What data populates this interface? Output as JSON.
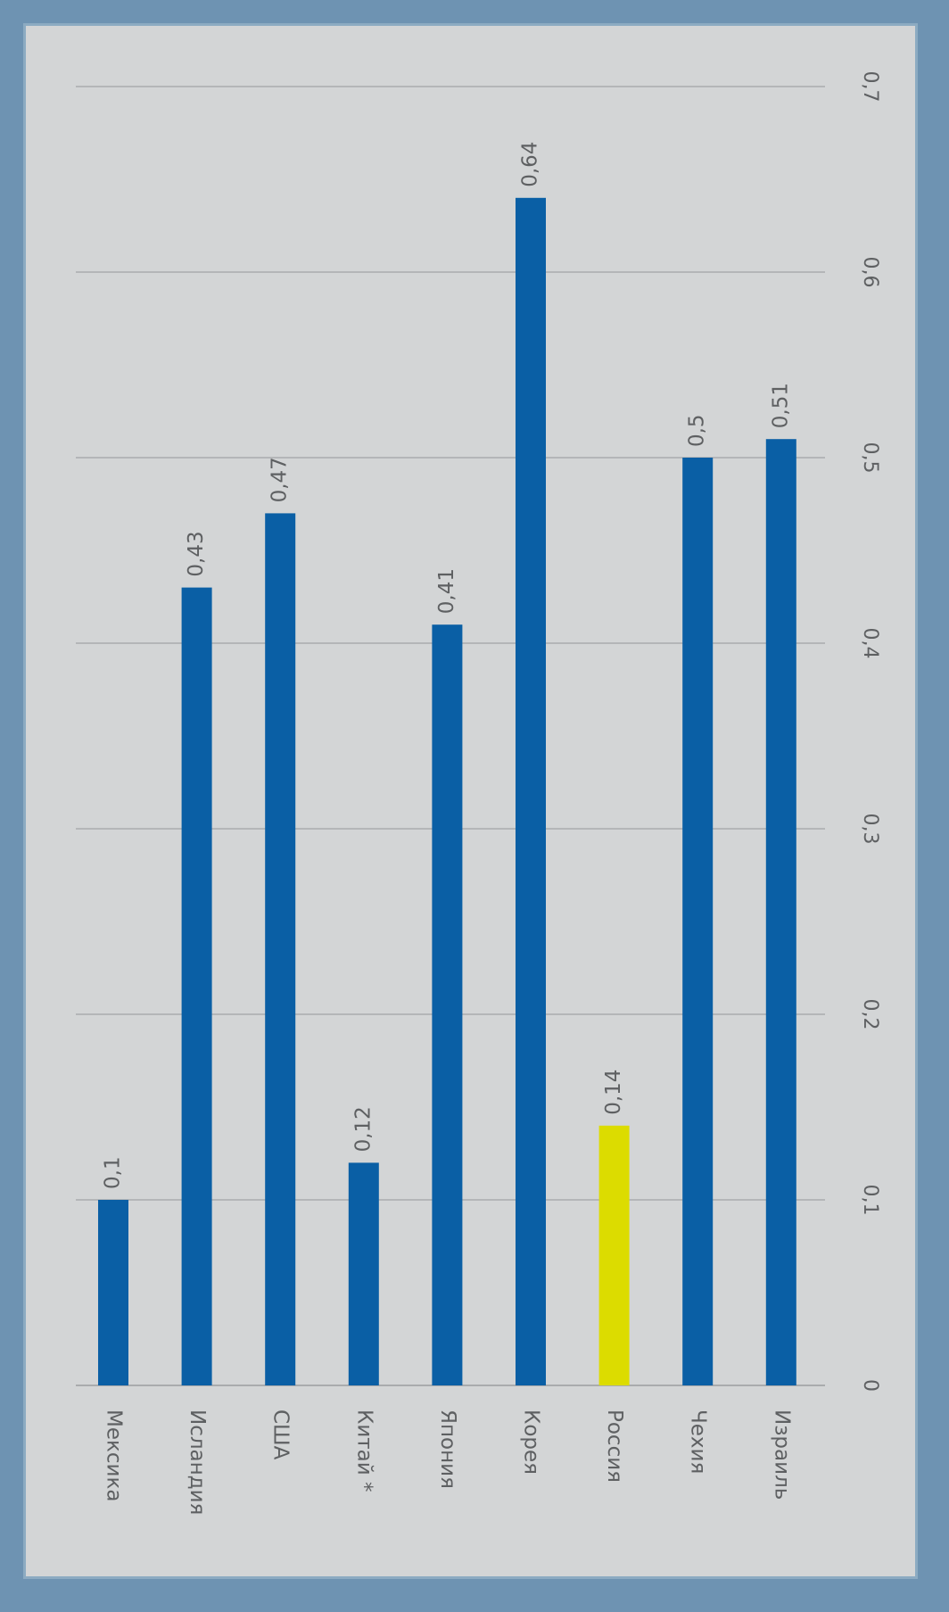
{
  "chart_data": {
    "type": "bar",
    "orientation": "horizontal",
    "title": "",
    "xlabel": "",
    "ylabel": "",
    "categories": [
      "Мексика",
      "Исландия",
      "США",
      "Китай *",
      "Япония",
      "Корея",
      "Россия",
      "Чехия",
      "Израиль"
    ],
    "values": [
      0.1,
      0.43,
      0.47,
      0.12,
      0.41,
      0.64,
      0.14,
      0.5,
      0.51
    ],
    "value_labels": [
      "0,1",
      "0,43",
      "0,47",
      "0,12",
      "0,41",
      "0,64",
      "0,14",
      "0,5",
      "0,51"
    ],
    "xlim": [
      0,
      0.7
    ],
    "ticks": [
      "0",
      "0,1",
      "0,2",
      "0,3",
      "0,4",
      "0,5",
      "0,6",
      "0,7"
    ],
    "grid": true,
    "legend": "none",
    "colors": {
      "bar": "#0a5fa5",
      "highlight": "#dcdc00",
      "highlight_category": "Россия",
      "grid": "#a9abad",
      "background": "#d3d5d6",
      "frame": "#6e93b2"
    }
  }
}
